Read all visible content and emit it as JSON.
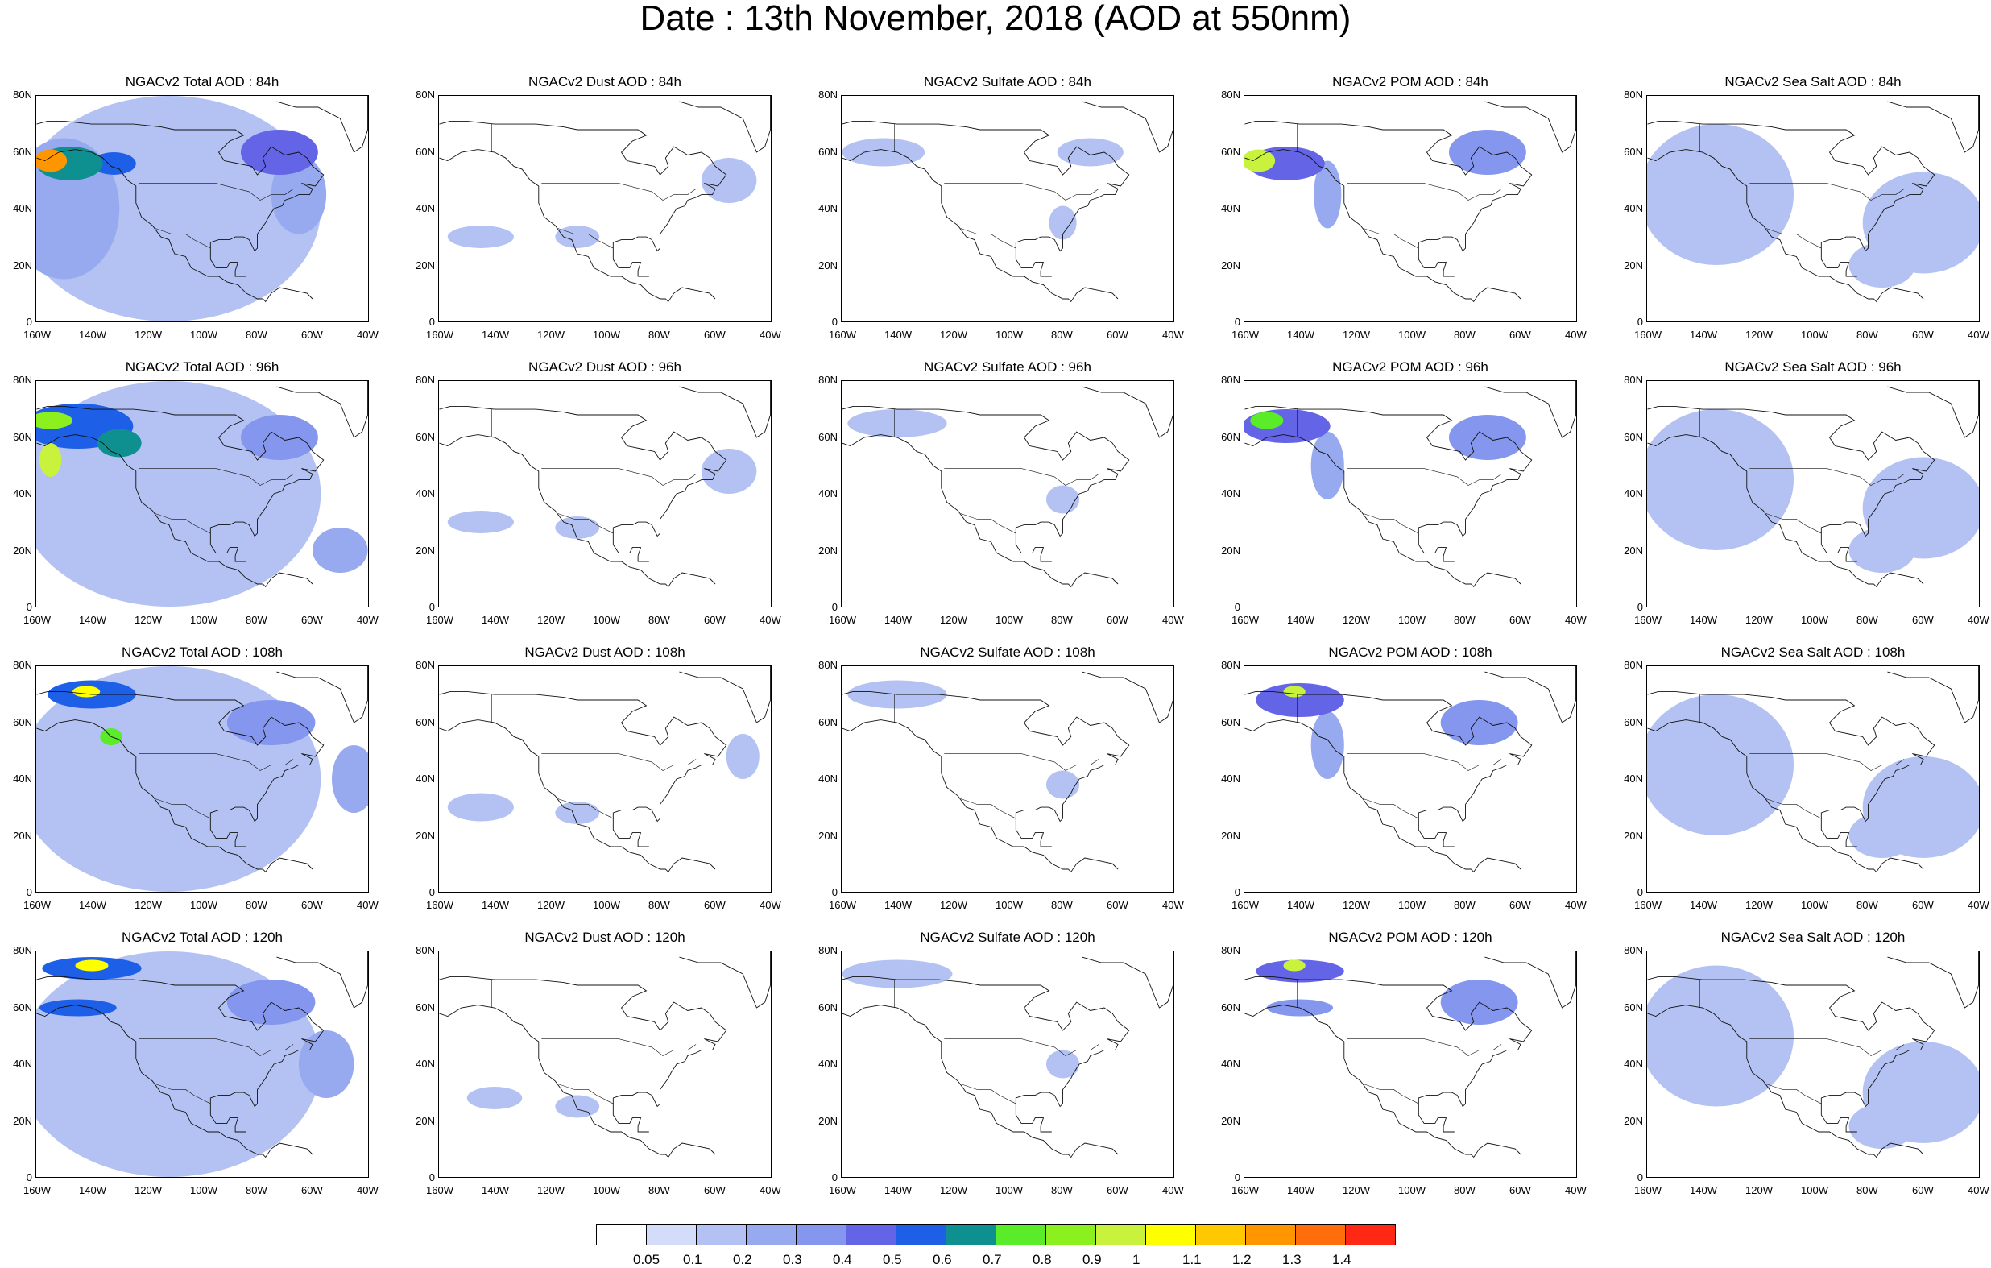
{
  "title": "Date : 13th November, 2018 (AOD at 550nm)",
  "columns": [
    "Total",
    "Dust",
    "Sulfate",
    "POM",
    "Sea Salt"
  ],
  "panel_titles": [
    [
      "NGACv2 Total AOD : 84h",
      "NGACv2 Dust AOD : 84h",
      "NGACv2 Sulfate AOD : 84h",
      "NGACv2 POM AOD : 84h",
      "NGACv2 Sea Salt AOD : 84h"
    ],
    [
      "NGACv2 Total AOD : 96h",
      "NGACv2 Dust AOD : 96h",
      "NGACv2 Sulfate AOD : 96h",
      "NGACv2 POM AOD : 96h",
      "NGACv2 Sea Salt AOD : 96h"
    ],
    [
      "NGACv2 Total AOD : 108h",
      "NGACv2 Dust AOD : 108h",
      "NGACv2 Sulfate AOD : 108h",
      "NGACv2 POM AOD : 108h",
      "NGACv2 Sea Salt AOD : 108h"
    ],
    [
      "NGACv2 Total AOD : 120h",
      "NGACv2 Dust AOD : 120h",
      "NGACv2 Sulfate AOD : 120h",
      "NGACv2 POM AOD : 120h",
      "NGACv2 Sea Salt  AOD : 120h"
    ]
  ],
  "lat_ticks": [
    "80N",
    "60N",
    "40N",
    "20N",
    "0"
  ],
  "lon_ticks": [
    "160W",
    "140W",
    "120W",
    "100W",
    "80W",
    "60W",
    "40W"
  ],
  "colorbar": {
    "labels": [
      "0.05",
      "0.1",
      "0.2",
      "0.3",
      "0.4",
      "0.5",
      "0.6",
      "0.7",
      "0.8",
      "0.9",
      "1",
      "1.1",
      "1.2",
      "1.3",
      "1.4"
    ],
    "colors": [
      "#ffffff",
      "#d3dcf8",
      "#b3c2f2",
      "#97aaef",
      "#8496ee",
      "#6464e6",
      "#1e5fe8",
      "#0f9090",
      "#5aec28",
      "#8cf01e",
      "#c8f23c",
      "#ffff00",
      "#ffc800",
      "#ff9600",
      "#ff6e0a",
      "#ff2814"
    ]
  },
  "chart_data": {
    "type": "heatmap",
    "variable": "AOD at 550nm",
    "extent": {
      "lon": [
        -160,
        -40
      ],
      "lat": [
        0,
        80
      ]
    },
    "forecast_hours": [
      "84h",
      "96h",
      "108h",
      "120h"
    ],
    "species": [
      "Total",
      "Dust",
      "Sulfate",
      "POM",
      "Sea Salt"
    ],
    "features": [
      {
        "species": "Total",
        "hour": "84h",
        "blobs": [
          {
            "lon": -112,
            "lat": 40,
            "rx": 55,
            "ry": 40,
            "v": 0.15
          },
          {
            "lon": -150,
            "lat": 40,
            "rx": 20,
            "ry": 25,
            "v": 0.2
          },
          {
            "lon": -148,
            "lat": 56,
            "rx": 12,
            "ry": 6,
            "v": 0.6
          },
          {
            "lon": -155,
            "lat": 57,
            "rx": 6,
            "ry": 4,
            "v": 1.2
          },
          {
            "lon": -132,
            "lat": 56,
            "rx": 8,
            "ry": 4,
            "v": 0.5
          },
          {
            "lon": -72,
            "lat": 60,
            "rx": 14,
            "ry": 8,
            "v": 0.4
          },
          {
            "lon": -65,
            "lat": 45,
            "rx": 10,
            "ry": 14,
            "v": 0.2
          }
        ]
      },
      {
        "species": "Total",
        "hour": "96h",
        "blobs": [
          {
            "lon": -112,
            "lat": 40,
            "rx": 55,
            "ry": 40,
            "v": 0.15
          },
          {
            "lon": -145,
            "lat": 64,
            "rx": 20,
            "ry": 8,
            "v": 0.5
          },
          {
            "lon": -155,
            "lat": 66,
            "rx": 8,
            "ry": 3,
            "v": 0.8
          },
          {
            "lon": -130,
            "lat": 58,
            "rx": 8,
            "ry": 5,
            "v": 0.6
          },
          {
            "lon": -155,
            "lat": 52,
            "rx": 4,
            "ry": 6,
            "v": 0.9
          },
          {
            "lon": -72,
            "lat": 60,
            "rx": 14,
            "ry": 8,
            "v": 0.35
          },
          {
            "lon": -50,
            "lat": 20,
            "rx": 10,
            "ry": 8,
            "v": 0.2
          }
        ]
      },
      {
        "species": "Total",
        "hour": "108h",
        "blobs": [
          {
            "lon": -112,
            "lat": 40,
            "rx": 55,
            "ry": 40,
            "v": 0.15
          },
          {
            "lon": -140,
            "lat": 70,
            "rx": 16,
            "ry": 5,
            "v": 0.5
          },
          {
            "lon": -142,
            "lat": 71,
            "rx": 5,
            "ry": 2,
            "v": 1.0
          },
          {
            "lon": -133,
            "lat": 55,
            "rx": 4,
            "ry": 3,
            "v": 0.7
          },
          {
            "lon": -75,
            "lat": 60,
            "rx": 16,
            "ry": 8,
            "v": 0.35
          },
          {
            "lon": -45,
            "lat": 40,
            "rx": 8,
            "ry": 12,
            "v": 0.25
          }
        ]
      },
      {
        "species": "Total",
        "hour": "120h",
        "blobs": [
          {
            "lon": -112,
            "lat": 40,
            "rx": 55,
            "ry": 40,
            "v": 0.15
          },
          {
            "lon": -140,
            "lat": 74,
            "rx": 18,
            "ry": 4,
            "v": 0.5
          },
          {
            "lon": -140,
            "lat": 75,
            "rx": 6,
            "ry": 2,
            "v": 1.0
          },
          {
            "lon": -145,
            "lat": 60,
            "rx": 14,
            "ry": 3,
            "v": 0.55
          },
          {
            "lon": -75,
            "lat": 62,
            "rx": 16,
            "ry": 8,
            "v": 0.35
          },
          {
            "lon": -55,
            "lat": 40,
            "rx": 10,
            "ry": 12,
            "v": 0.2
          }
        ]
      },
      {
        "species": "Dust",
        "hour": "84h",
        "blobs": [
          {
            "lon": -145,
            "lat": 30,
            "rx": 12,
            "ry": 4,
            "v": 0.1
          },
          {
            "lon": -110,
            "lat": 30,
            "rx": 8,
            "ry": 4,
            "v": 0.1
          },
          {
            "lon": -55,
            "lat": 50,
            "rx": 10,
            "ry": 8,
            "v": 0.1
          }
        ]
      },
      {
        "species": "Dust",
        "hour": "96h",
        "blobs": [
          {
            "lon": -145,
            "lat": 30,
            "rx": 12,
            "ry": 4,
            "v": 0.1
          },
          {
            "lon": -110,
            "lat": 28,
            "rx": 8,
            "ry": 4,
            "v": 0.1
          },
          {
            "lon": -55,
            "lat": 48,
            "rx": 10,
            "ry": 8,
            "v": 0.1
          }
        ]
      },
      {
        "species": "Dust",
        "hour": "108h",
        "blobs": [
          {
            "lon": -145,
            "lat": 30,
            "rx": 12,
            "ry": 5,
            "v": 0.1
          },
          {
            "lon": -110,
            "lat": 28,
            "rx": 8,
            "ry": 4,
            "v": 0.1
          },
          {
            "lon": -50,
            "lat": 48,
            "rx": 6,
            "ry": 8,
            "v": 0.1
          }
        ]
      },
      {
        "species": "Dust",
        "hour": "120h",
        "blobs": [
          {
            "lon": -140,
            "lat": 28,
            "rx": 10,
            "ry": 4,
            "v": 0.1
          },
          {
            "lon": -110,
            "lat": 25,
            "rx": 8,
            "ry": 4,
            "v": 0.1
          }
        ]
      },
      {
        "species": "Sulfate",
        "hour": "84h",
        "blobs": [
          {
            "lon": -145,
            "lat": 60,
            "rx": 15,
            "ry": 5,
            "v": 0.1
          },
          {
            "lon": -80,
            "lat": 35,
            "rx": 5,
            "ry": 6,
            "v": 0.1
          },
          {
            "lon": -70,
            "lat": 60,
            "rx": 12,
            "ry": 5,
            "v": 0.1
          }
        ]
      },
      {
        "species": "Sulfate",
        "hour": "96h",
        "blobs": [
          {
            "lon": -140,
            "lat": 65,
            "rx": 18,
            "ry": 5,
            "v": 0.1
          },
          {
            "lon": -80,
            "lat": 38,
            "rx": 6,
            "ry": 5,
            "v": 0.1
          }
        ]
      },
      {
        "species": "Sulfate",
        "hour": "108h",
        "blobs": [
          {
            "lon": -140,
            "lat": 70,
            "rx": 18,
            "ry": 5,
            "v": 0.1
          },
          {
            "lon": -80,
            "lat": 38,
            "rx": 6,
            "ry": 5,
            "v": 0.1
          }
        ]
      },
      {
        "species": "Sulfate",
        "hour": "120h",
        "blobs": [
          {
            "lon": -140,
            "lat": 72,
            "rx": 20,
            "ry": 5,
            "v": 0.1
          },
          {
            "lon": -80,
            "lat": 40,
            "rx": 6,
            "ry": 5,
            "v": 0.1
          }
        ]
      },
      {
        "species": "POM",
        "hour": "84h",
        "blobs": [
          {
            "lon": -145,
            "lat": 56,
            "rx": 14,
            "ry": 6,
            "v": 0.4
          },
          {
            "lon": -155,
            "lat": 57,
            "rx": 6,
            "ry": 4,
            "v": 0.9
          },
          {
            "lon": -130,
            "lat": 45,
            "rx": 5,
            "ry": 12,
            "v": 0.2
          },
          {
            "lon": -72,
            "lat": 60,
            "rx": 14,
            "ry": 8,
            "v": 0.3
          }
        ]
      },
      {
        "species": "POM",
        "hour": "96h",
        "blobs": [
          {
            "lon": -145,
            "lat": 64,
            "rx": 16,
            "ry": 6,
            "v": 0.4
          },
          {
            "lon": -152,
            "lat": 66,
            "rx": 6,
            "ry": 3,
            "v": 0.7
          },
          {
            "lon": -130,
            "lat": 50,
            "rx": 6,
            "ry": 12,
            "v": 0.2
          },
          {
            "lon": -72,
            "lat": 60,
            "rx": 14,
            "ry": 8,
            "v": 0.3
          }
        ]
      },
      {
        "species": "POM",
        "hour": "108h",
        "blobs": [
          {
            "lon": -140,
            "lat": 68,
            "rx": 16,
            "ry": 6,
            "v": 0.4
          },
          {
            "lon": -142,
            "lat": 71,
            "rx": 4,
            "ry": 2,
            "v": 0.9
          },
          {
            "lon": -130,
            "lat": 52,
            "rx": 6,
            "ry": 12,
            "v": 0.2
          },
          {
            "lon": -75,
            "lat": 60,
            "rx": 14,
            "ry": 8,
            "v": 0.3
          }
        ]
      },
      {
        "species": "POM",
        "hour": "120h",
        "blobs": [
          {
            "lon": -140,
            "lat": 73,
            "rx": 16,
            "ry": 4,
            "v": 0.4
          },
          {
            "lon": -142,
            "lat": 75,
            "rx": 4,
            "ry": 2,
            "v": 0.9
          },
          {
            "lon": -140,
            "lat": 60,
            "rx": 12,
            "ry": 3,
            "v": 0.35
          },
          {
            "lon": -75,
            "lat": 62,
            "rx": 14,
            "ry": 8,
            "v": 0.3
          }
        ]
      },
      {
        "species": "Sea Salt",
        "hour": "84h",
        "blobs": [
          {
            "lon": -135,
            "lat": 45,
            "rx": 28,
            "ry": 25,
            "v": 0.15
          },
          {
            "lon": -60,
            "lat": 35,
            "rx": 22,
            "ry": 18,
            "v": 0.15
          },
          {
            "lon": -75,
            "lat": 20,
            "rx": 12,
            "ry": 8,
            "v": 0.1
          }
        ]
      },
      {
        "species": "Sea Salt",
        "hour": "96h",
        "blobs": [
          {
            "lon": -135,
            "lat": 45,
            "rx": 28,
            "ry": 25,
            "v": 0.15
          },
          {
            "lon": -60,
            "lat": 35,
            "rx": 22,
            "ry": 18,
            "v": 0.15
          },
          {
            "lon": -75,
            "lat": 20,
            "rx": 12,
            "ry": 8,
            "v": 0.1
          }
        ]
      },
      {
        "species": "Sea Salt",
        "hour": "108h",
        "blobs": [
          {
            "lon": -135,
            "lat": 45,
            "rx": 28,
            "ry": 25,
            "v": 0.15
          },
          {
            "lon": -60,
            "lat": 30,
            "rx": 22,
            "ry": 18,
            "v": 0.15
          },
          {
            "lon": -75,
            "lat": 20,
            "rx": 12,
            "ry": 8,
            "v": 0.1
          }
        ]
      },
      {
        "species": "Sea Salt",
        "hour": "120h",
        "blobs": [
          {
            "lon": -135,
            "lat": 50,
            "rx": 28,
            "ry": 25,
            "v": 0.15
          },
          {
            "lon": -60,
            "lat": 30,
            "rx": 22,
            "ry": 18,
            "v": 0.15
          },
          {
            "lon": -75,
            "lat": 18,
            "rx": 12,
            "ry": 8,
            "v": 0.1
          }
        ]
      }
    ]
  }
}
